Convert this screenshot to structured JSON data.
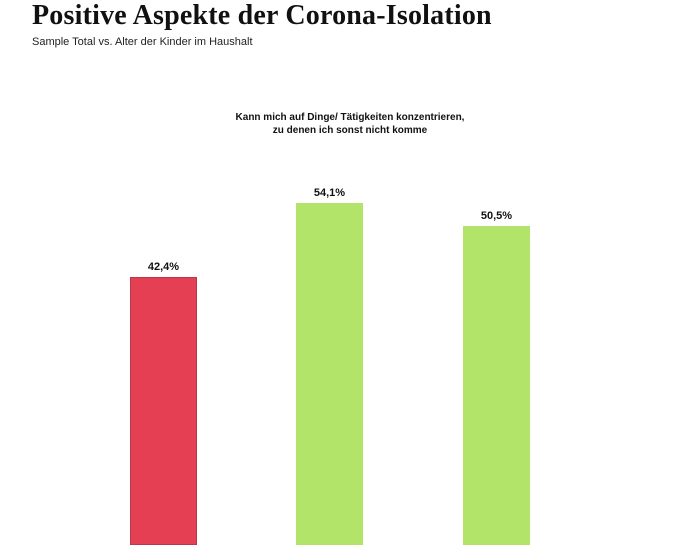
{
  "header": {
    "title": "Positive Aspekte der Corona-Isolation",
    "subtitle": "Sample Total vs. Alter der Kinder im Haushalt"
  },
  "chart_data": {
    "type": "bar",
    "title": "Kann mich auf Dinge/ Tätigkeiten konzentrieren, zu denen ich sonst nicht komme",
    "title_lines": [
      "Kann mich auf Dinge/ Tätigkeiten konzentrieren,",
      "zu denen ich sonst nicht komme"
    ],
    "categories": [
      "",
      "",
      ""
    ],
    "values": [
      42.4,
      54.1,
      50.5
    ],
    "value_labels": [
      "42,4%",
      "54,1%",
      "50,5%"
    ],
    "colors": [
      "#e43f52",
      "#b2e46a",
      "#b2e46a"
    ],
    "xlabel": "",
    "ylabel": "",
    "grid": false,
    "legend": null,
    "unit": "%"
  }
}
